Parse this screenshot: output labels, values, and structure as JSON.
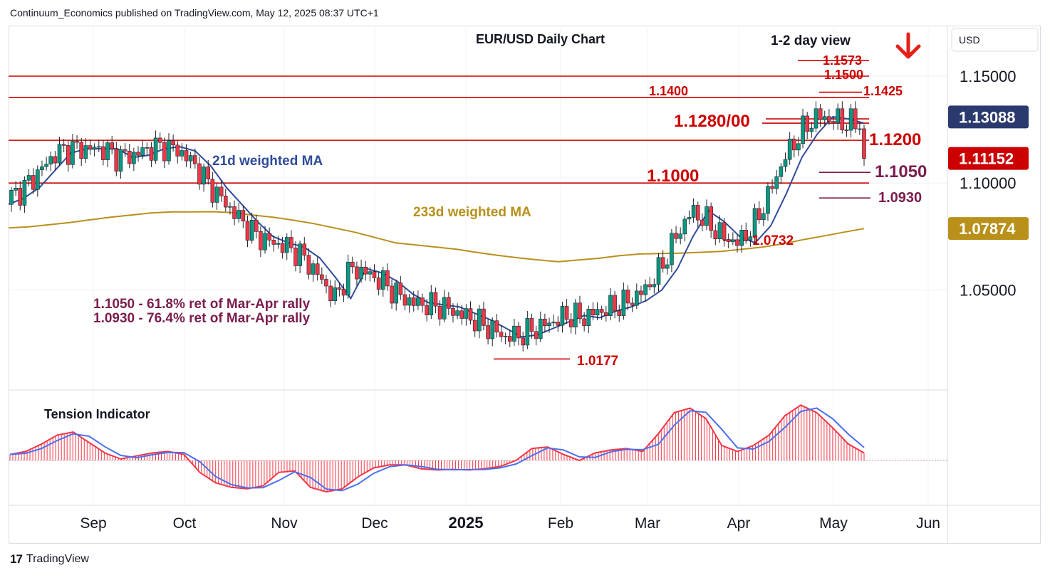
{
  "header": {
    "publisher_line": "Continuum_Economics published on TradingView.com, May 12, 2025 08:37 UTC+1"
  },
  "footer": {
    "brand": "TradingView",
    "logo_mark": "17"
  },
  "colors": {
    "up": "#089981",
    "down": "#f23645",
    "ma21": "#2f4b9a",
    "ma233": "#b8901a",
    "level_line": "#cc0000",
    "annotation_red": "#cc0000",
    "annotation_purple": "#7a1d4d",
    "price_tag_dark": "#2a3a6e",
    "price_tag_red": "#cc0000",
    "price_tag_gold": "#b8901a",
    "arrow": "#e5201b"
  },
  "chart_data": [
    {
      "type": "candlestick",
      "title": "EUR/USD Daily Chart",
      "subtitle": "1-2 day view",
      "direction_icon": "down-arrow-icon",
      "x_tick_labels": [
        "Sep",
        "Oct",
        "Nov",
        "Dec",
        "2025",
        "Feb",
        "Mar",
        "Apr",
        "May",
        "Jun"
      ],
      "y_tick_labels": [
        "1.15000",
        "1.10000",
        "1.05000"
      ],
      "y_ticks": [
        1.15,
        1.1,
        1.05
      ],
      "ylim": [
        1.002,
        1.175
      ],
      "grid": true,
      "price_tags": [
        {
          "text": "1.13088",
          "value": 1.13088,
          "style": "dark"
        },
        {
          "text": "1.11152",
          "value": 1.11152,
          "style": "red"
        },
        {
          "text": "1.07874",
          "value": 1.07874,
          "style": "gold"
        }
      ],
      "horizontal_levels": [
        {
          "value": 1.15,
          "label": "1.1500"
        },
        {
          "value": 1.14,
          "label": "1.1400"
        },
        {
          "value": 1.12,
          "label": "1.1200"
        },
        {
          "value": 1.1,
          "label": "1.1000"
        }
      ],
      "level_labels": [
        {
          "text": "1.1573",
          "value": 1.1573
        },
        {
          "text": "1.1500",
          "value": 1.15
        },
        {
          "text": "1.1425",
          "value": 1.1425
        },
        {
          "text": "1.1400",
          "value": 1.14
        },
        {
          "text": "1.1280/00",
          "value": 1.129
        },
        {
          "text": "1.1200",
          "value": 1.12
        },
        {
          "text": "1.1000",
          "value": 1.1
        },
        {
          "text": "1.1050",
          "value": 1.105
        },
        {
          "text": "1.0930",
          "value": 1.093
        },
        {
          "text": "1.0732",
          "value": 1.0732
        },
        {
          "text": "1.0177",
          "value": 1.0177
        }
      ],
      "annotations": {
        "ma21_label": "21d weighted MA",
        "ma233_label": "233d weighted MA",
        "note_line1": "1.1050 - 61.8% ret of Mar-Apr rally",
        "note_line2": "1.0930 - 76.4% ret of Mar-Apr rally"
      },
      "series": [
        {
          "name": "21d weighted MA",
          "color": "#2f4b9a",
          "values": [
            1.09,
            1.093,
            1.098,
            1.106,
            1.114,
            1.116,
            1.116,
            1.116,
            1.112,
            1.113,
            1.116,
            1.117,
            1.115,
            1.108,
            1.098,
            1.09,
            1.082,
            1.075,
            1.072,
            1.07,
            1.065,
            1.056,
            1.046,
            1.06,
            1.058,
            1.054,
            1.048,
            1.044,
            1.043,
            1.042,
            1.039,
            1.036,
            1.032,
            1.028,
            1.029,
            1.032,
            1.035,
            1.038,
            1.037,
            1.04,
            1.042,
            1.045,
            1.05,
            1.06,
            1.075,
            1.087,
            1.082,
            1.075,
            1.072,
            1.08,
            1.095,
            1.112,
            1.123,
            1.131,
            1.13,
            1.128
          ]
        },
        {
          "name": "233d weighted MA",
          "color": "#b8901a",
          "values": [
            1.079,
            1.0795,
            1.0805,
            1.0815,
            1.0828,
            1.084,
            1.085,
            1.086,
            1.0865,
            1.0865,
            1.0866,
            1.0862,
            1.085,
            1.084,
            1.0826,
            1.081,
            1.079,
            1.077,
            1.0745,
            1.072,
            1.071,
            1.07,
            1.069,
            1.0675,
            1.0662,
            1.065,
            1.064,
            1.0632,
            1.064,
            1.0648,
            1.066,
            1.0668,
            1.067,
            1.0672,
            1.0676,
            1.068,
            1.069,
            1.07,
            1.0715,
            1.0735,
            1.0752,
            1.077,
            1.0787
          ]
        }
      ]
    },
    {
      "type": "area",
      "title": "Tension Indicator",
      "series": [
        {
          "name": "Tension Indicator",
          "values": [
            0.2,
            0.3,
            0.55,
            0.85,
            0.95,
            0.6,
            0.25,
            0.05,
            0.15,
            0.25,
            0.3,
            0.2,
            -0.4,
            -0.75,
            -0.9,
            -0.95,
            -0.85,
            -0.4,
            -0.35,
            -0.9,
            -1.05,
            -0.95,
            -0.55,
            -0.25,
            -0.15,
            -0.15,
            -0.28,
            -0.32,
            -0.3,
            -0.32,
            -0.28,
            -0.2,
            0.0,
            0.4,
            0.45,
            0.2,
            0.0,
            0.25,
            0.35,
            0.4,
            0.3,
            0.9,
            1.6,
            1.75,
            1.4,
            0.5,
            0.3,
            0.5,
            0.85,
            1.5,
            1.85,
            1.6,
            1.1,
            0.55,
            0.25
          ]
        }
      ]
    }
  ]
}
